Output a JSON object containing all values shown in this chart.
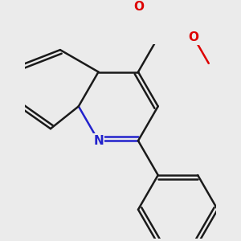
{
  "bg_color": "#ebebeb",
  "bond_color": "#1a1a1a",
  "n_color": "#2222cc",
  "o_color": "#dd0000",
  "bond_width": 1.8,
  "dbo": 0.1,
  "font_size_atom": 11,
  "fig_size": [
    3.0,
    3.0
  ],
  "dpi": 100,
  "xlim": [
    -3.0,
    3.5
  ],
  "ylim": [
    -3.8,
    2.8
  ]
}
